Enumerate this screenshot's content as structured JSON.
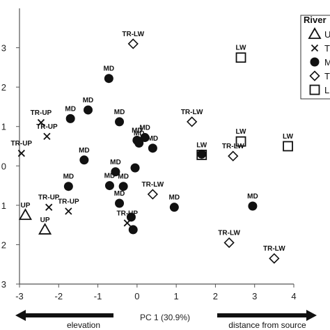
{
  "chart_data": {
    "type": "scatter",
    "xlabel": "PC 1 (30.9%)",
    "xlim": [
      -3,
      4
    ],
    "ylim": [
      -3,
      4
    ],
    "x_ticks": [
      "-3",
      "-2",
      "-1",
      "0",
      "1",
      "2",
      "3",
      "4"
    ],
    "y_ticks": [
      "3",
      "2",
      "1",
      "0",
      "1",
      "2",
      "3"
    ],
    "legend": {
      "title": "River",
      "position": "top-right",
      "entries": [
        {
          "marker": "triangle",
          "text": "U"
        },
        {
          "marker": "cross",
          "text": "T"
        },
        {
          "marker": "circle",
          "text": "M"
        },
        {
          "marker": "diamond",
          "text": "T"
        },
        {
          "marker": "square",
          "text": "L"
        }
      ]
    },
    "arrows": {
      "left": "elevation",
      "right": "distance from source"
    },
    "points": [
      {
        "marker": "triangle",
        "x": -2.85,
        "y": -1.25,
        "label": "UP"
      },
      {
        "marker": "triangle",
        "x": -2.35,
        "y": -1.62,
        "label": "UP"
      },
      {
        "marker": "cross",
        "x": -2.95,
        "y": 0.32,
        "label": "TR-UP"
      },
      {
        "marker": "cross",
        "x": -2.45,
        "y": 1.1,
        "label": "TR-UP"
      },
      {
        "marker": "cross",
        "x": -2.3,
        "y": 0.75,
        "label": "TR-UP"
      },
      {
        "marker": "cross",
        "x": -2.25,
        "y": -1.05,
        "label": "TR-UP"
      },
      {
        "marker": "cross",
        "x": -1.75,
        "y": -1.15,
        "label": "TR-UP"
      },
      {
        "marker": "cross",
        "x": -0.25,
        "y": -1.45,
        "label": "TR-UP"
      },
      {
        "marker": "circle",
        "x": -0.72,
        "y": 2.22,
        "label": "MD"
      },
      {
        "marker": "circle",
        "x": -1.7,
        "y": 1.2,
        "label": "MD"
      },
      {
        "marker": "circle",
        "x": -1.25,
        "y": 1.42,
        "label": "MD"
      },
      {
        "marker": "circle",
        "x": -0.45,
        "y": 1.12,
        "label": "MD"
      },
      {
        "marker": "circle",
        "x": -1.35,
        "y": 0.15,
        "label": "MD"
      },
      {
        "marker": "circle",
        "x": -1.75,
        "y": -0.52,
        "label": "MD"
      },
      {
        "marker": "circle",
        "x": -0.55,
        "y": -0.15,
        "label": "MD"
      },
      {
        "marker": "circle",
        "x": -0.7,
        "y": -0.5,
        "label": "MD"
      },
      {
        "marker": "circle",
        "x": -0.35,
        "y": -0.52,
        "label": "MD"
      },
      {
        "marker": "circle",
        "x": -0.45,
        "y": -0.95,
        "label": "MD"
      },
      {
        "marker": "circle",
        "x": -0.1,
        "y": -1.62,
        "label": ""
      },
      {
        "marker": "circle",
        "x": -0.15,
        "y": -1.3,
        "label": ""
      },
      {
        "marker": "circle",
        "x": -0.05,
        "y": -0.05,
        "label": ""
      },
      {
        "marker": "circle",
        "x": 0.0,
        "y": 0.65,
        "label": "MD"
      },
      {
        "marker": "circle",
        "x": 0.2,
        "y": 0.72,
        "label": "MD"
      },
      {
        "marker": "circle",
        "x": 0.05,
        "y": 0.58,
        "label": "MD"
      },
      {
        "marker": "circle",
        "x": 0.4,
        "y": 0.45,
        "label": "MD"
      },
      {
        "marker": "circle",
        "x": 0.95,
        "y": -1.05,
        "label": "MD"
      },
      {
        "marker": "circle",
        "x": 1.65,
        "y": 0.3,
        "label": ""
      },
      {
        "marker": "circle",
        "x": 2.95,
        "y": -1.02,
        "label": "MD"
      },
      {
        "marker": "diamond",
        "x": -0.1,
        "y": 3.1,
        "label": "TR-LW"
      },
      {
        "marker": "diamond",
        "x": 1.4,
        "y": 1.12,
        "label": "TR-LW"
      },
      {
        "marker": "diamond",
        "x": 0.4,
        "y": -0.72,
        "label": "TR-LW"
      },
      {
        "marker": "diamond",
        "x": 2.45,
        "y": 0.25,
        "label": "TR-LW"
      },
      {
        "marker": "diamond",
        "x": 2.35,
        "y": -1.95,
        "label": "TR-LW"
      },
      {
        "marker": "diamond",
        "x": 3.5,
        "y": -2.35,
        "label": "TR-LW"
      },
      {
        "marker": "square",
        "x": 2.65,
        "y": 2.75,
        "label": "LW"
      },
      {
        "marker": "square",
        "x": 2.65,
        "y": 0.62,
        "label": "LW"
      },
      {
        "marker": "square",
        "x": 3.85,
        "y": 0.5,
        "label": "LW"
      },
      {
        "marker": "square",
        "x": 1.65,
        "y": 0.28,
        "label": "LW"
      }
    ]
  }
}
